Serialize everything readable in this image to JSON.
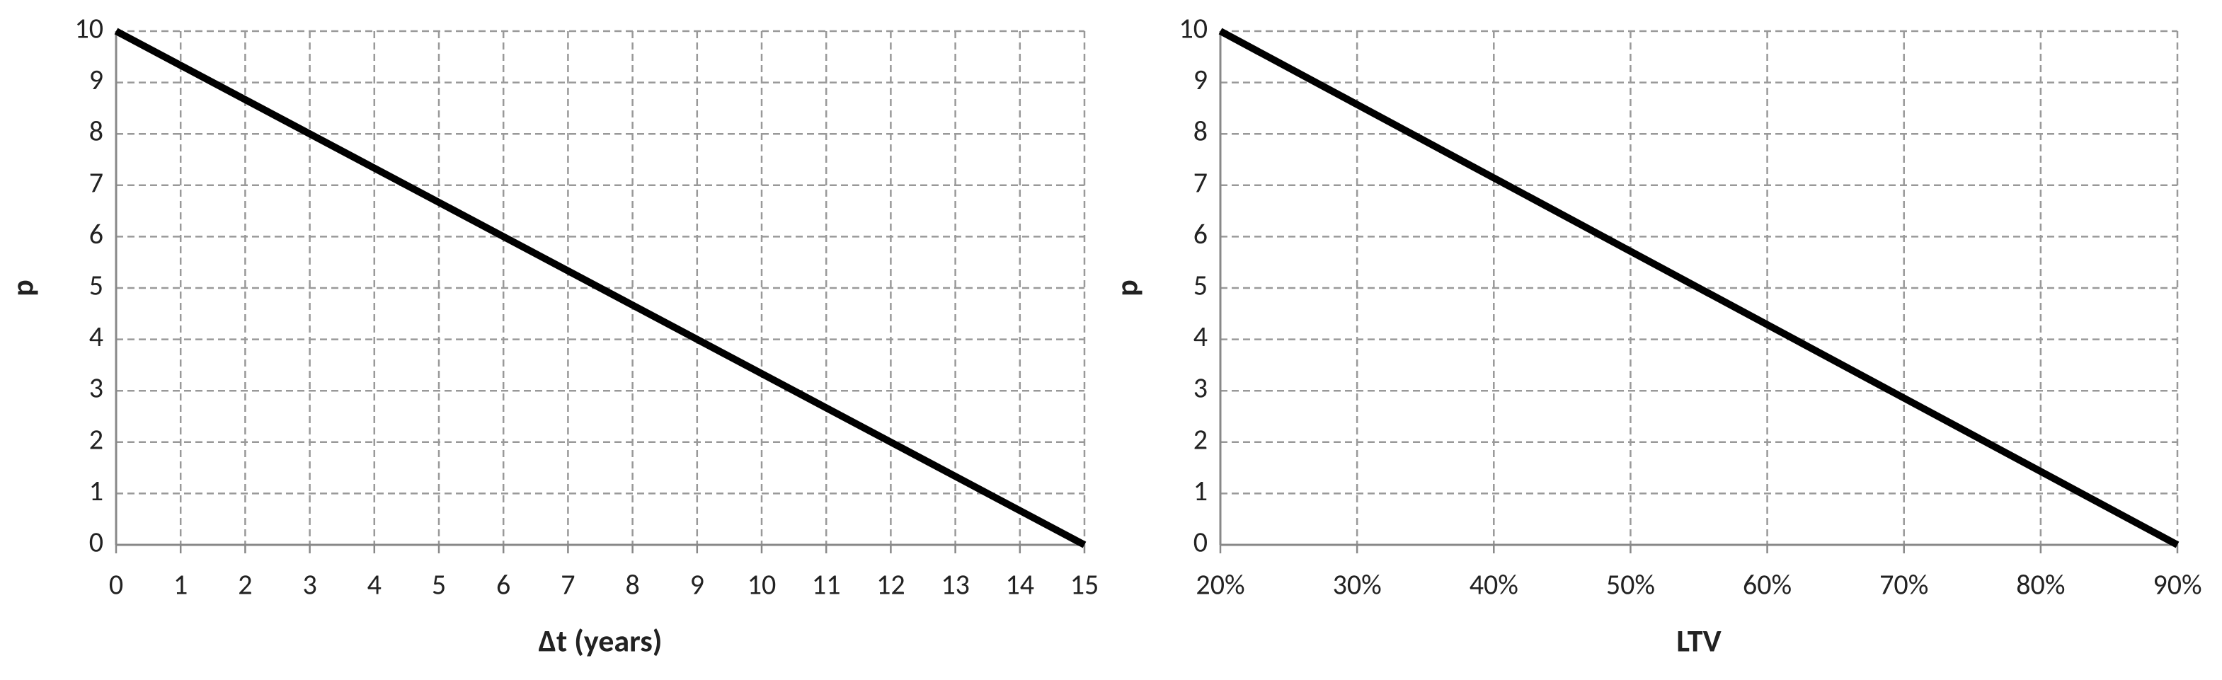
{
  "chart_data": [
    {
      "type": "line",
      "x_label": "Δt (years)",
      "y_label": "p",
      "x": [
        0,
        15
      ],
      "values": [
        10,
        0
      ],
      "color": "#000000",
      "xlim": [
        0,
        15
      ],
      "xticks": [
        0,
        1,
        2,
        3,
        4,
        5,
        6,
        7,
        8,
        9,
        10,
        11,
        12,
        13,
        14,
        15
      ],
      "ylim": [
        0,
        10
      ],
      "yticks": [
        0,
        1,
        2,
        3,
        4,
        5,
        6,
        7,
        8,
        9,
        10
      ],
      "grid": true
    },
    {
      "type": "line",
      "x_label": "LTV",
      "y_label": "p",
      "x": [
        20,
        90
      ],
      "values": [
        10,
        0
      ],
      "color": "#000000",
      "xlim": [
        20,
        90
      ],
      "xticks": [
        {
          "value": 20,
          "label": "20%"
        },
        {
          "value": 30,
          "label": "30%"
        },
        {
          "value": 40,
          "label": "40%"
        },
        {
          "value": 50,
          "label": "50%"
        },
        {
          "value": 60,
          "label": "60%"
        },
        {
          "value": 70,
          "label": "70%"
        },
        {
          "value": 80,
          "label": "80%"
        },
        {
          "value": 90,
          "label": "90%"
        }
      ],
      "ylim": [
        0,
        10
      ],
      "yticks": [
        0,
        1,
        2,
        3,
        4,
        5,
        6,
        7,
        8,
        9,
        10
      ],
      "grid": true
    }
  ]
}
